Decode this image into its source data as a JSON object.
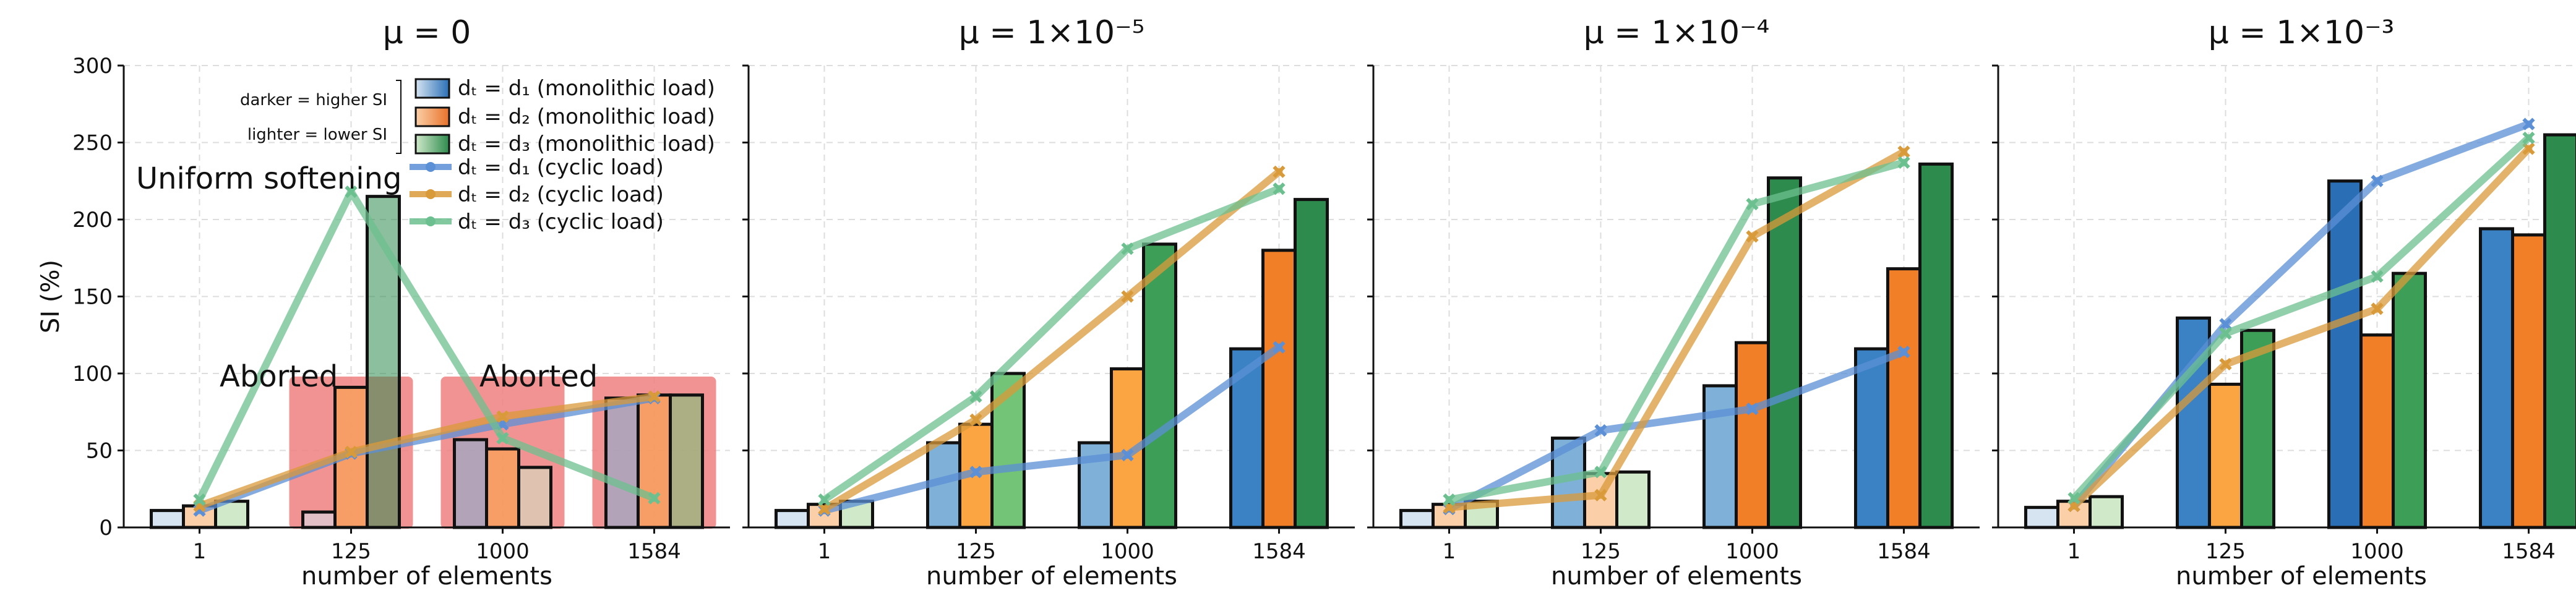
{
  "colors": {
    "blue": [
      "#d6e4f2",
      "#7fb1d8",
      "#3b82c4",
      "#2a6fb5"
    ],
    "orange": [
      "#fbd0a8",
      "#fba542",
      "#f07f28",
      "#e8722a"
    ],
    "green": [
      "#cfe9c9",
      "#73c476",
      "#3d9e57",
      "#2e8b4e"
    ],
    "cyclic_blue": "#5b8fd6",
    "cyclic_orange": "#d99a3a",
    "cyclic_green": "#6cc08f",
    "aborted": "#f08080"
  },
  "legend": {
    "darker": "darker = higher SI",
    "lighter": "lighter = lower SI",
    "entries": [
      "dₜ = d₁ (monolithic load)",
      "dₜ = d₂ (monolithic load)",
      "dₜ = d₃ (monolithic load)",
      "dₜ = d₁ (cyclic load)",
      "dₜ = d₂ (cyclic load)",
      "dₜ = d₃ (cyclic load)"
    ]
  },
  "annotations": {
    "uniform": "Uniform softening",
    "aborted": "Aborted"
  },
  "chart_data": [
    {
      "type": "bar",
      "title": "μ = 0",
      "xlabel": "number of elements",
      "ylabel": "SI (%)",
      "ylim": [
        0,
        300
      ],
      "yticks": [
        "0",
        "50",
        "100",
        "150",
        "200",
        "250",
        "300"
      ],
      "categories": [
        "1",
        "125",
        "1000",
        "1584"
      ],
      "series": [
        {
          "name": "dₜ = d₁ (monolithic load)",
          "values": [
            11,
            10,
            57,
            84
          ]
        },
        {
          "name": "dₜ = d₂ (monolithic load)",
          "values": [
            14,
            91,
            51,
            86
          ]
        },
        {
          "name": "dₜ = d₃ (monolithic load)",
          "values": [
            17,
            215,
            39,
            86
          ]
        }
      ],
      "lines": [
        {
          "name": "dₜ = d₁ (cyclic load)",
          "values": [
            11,
            48,
            67,
            84
          ]
        },
        {
          "name": "dₜ = d₂ (cyclic load)",
          "values": [
            14,
            49,
            72,
            85
          ]
        },
        {
          "name": "dₜ = d₃ (cyclic load)",
          "values": [
            18,
            218,
            58,
            19
          ]
        }
      ],
      "aborted_categories": [
        "125",
        "1000",
        "1584"
      ]
    },
    {
      "type": "bar",
      "title": "μ = 1×10⁻⁵",
      "xlabel": "number of elements",
      "ylim": [
        0,
        300
      ],
      "categories": [
        "1",
        "125",
        "1000",
        "1584"
      ],
      "series": [
        {
          "name": "dₜ = d₁ (monolithic load)",
          "values": [
            11,
            55,
            55,
            116
          ]
        },
        {
          "name": "dₜ = d₂ (monolithic load)",
          "values": [
            15,
            67,
            103,
            180
          ]
        },
        {
          "name": "dₜ = d₃ (monolithic load)",
          "values": [
            17,
            100,
            184,
            213
          ]
        }
      ],
      "lines": [
        {
          "name": "dₜ = d₁ (cyclic load)",
          "values": [
            11,
            36,
            47,
            117
          ]
        },
        {
          "name": "dₜ = d₂ (cyclic load)",
          "values": [
            12,
            70,
            150,
            231
          ]
        },
        {
          "name": "dₜ = d₃ (cyclic load)",
          "values": [
            18,
            85,
            181,
            220
          ]
        }
      ]
    },
    {
      "type": "bar",
      "title": "μ = 1×10⁻⁴",
      "xlabel": "number of elements",
      "ylim": [
        0,
        300
      ],
      "categories": [
        "1",
        "125",
        "1000",
        "1584"
      ],
      "series": [
        {
          "name": "dₜ = d₁ (monolithic load)",
          "values": [
            11,
            58,
            92,
            116
          ]
        },
        {
          "name": "dₜ = d₂ (monolithic load)",
          "values": [
            15,
            35,
            120,
            168
          ]
        },
        {
          "name": "dₜ = d₃ (monolithic load)",
          "values": [
            17,
            36,
            227,
            236
          ]
        }
      ],
      "lines": [
        {
          "name": "dₜ = d₁ (cyclic load)",
          "values": [
            12,
            63,
            77,
            114
          ]
        },
        {
          "name": "dₜ = d₂ (cyclic load)",
          "values": [
            13,
            21,
            189,
            244
          ]
        },
        {
          "name": "dₜ = d₃ (cyclic load)",
          "values": [
            18,
            36,
            210,
            237
          ]
        }
      ]
    },
    {
      "type": "bar",
      "title": "μ = 1×10⁻³",
      "xlabel": "number of elements",
      "ylim": [
        0,
        300
      ],
      "categories": [
        "1",
        "125",
        "1000",
        "1584"
      ],
      "series": [
        {
          "name": "dₜ = d₁ (monolithic load)",
          "values": [
            13,
            136,
            225,
            194
          ]
        },
        {
          "name": "dₜ = d₂ (monolithic load)",
          "values": [
            17,
            93,
            125,
            190
          ]
        },
        {
          "name": "dₜ = d₃ (monolithic load)",
          "values": [
            20,
            128,
            165,
            255
          ]
        }
      ],
      "lines": [
        {
          "name": "dₜ = d₁ (cyclic load)",
          "values": [
            14,
            132,
            225,
            262
          ]
        },
        {
          "name": "dₜ = d₂ (cyclic load)",
          "values": [
            14,
            106,
            142,
            246
          ]
        },
        {
          "name": "dₜ = d₃ (cyclic load)",
          "values": [
            19,
            126,
            163,
            253
          ]
        }
      ]
    }
  ]
}
